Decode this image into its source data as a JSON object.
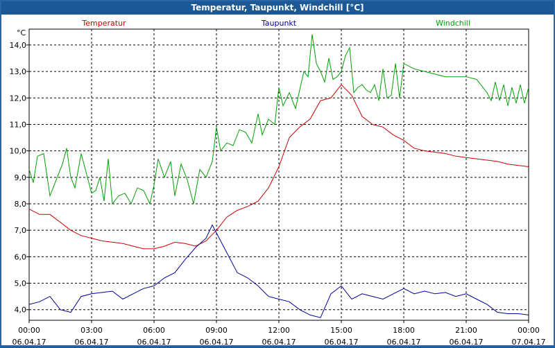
{
  "window": {
    "title": "Temperatur, Taupunkt, Windchill [°C]"
  },
  "colors": {
    "temperatur": "#cc0000",
    "taupunkt": "#000099",
    "windchill": "#00a000",
    "grid": "#000000",
    "background": "#ffffff"
  },
  "chart_data": {
    "type": "line",
    "title": "Temperatur, Taupunkt, Windchill [°C]",
    "ylabel": "°C",
    "ylim": [
      3.6,
      14.6
    ],
    "xlim": [
      0,
      24
    ],
    "grid": true,
    "legend_position": "top",
    "yticks": [
      {
        "value": 4.0,
        "label": "4,0"
      },
      {
        "value": 5.0,
        "label": "5,0"
      },
      {
        "value": 6.0,
        "label": "6,0"
      },
      {
        "value": 7.0,
        "label": "7,0"
      },
      {
        "value": 8.0,
        "label": "8,0"
      },
      {
        "value": 9.0,
        "label": "9,0"
      },
      {
        "value": 10.0,
        "label": "10,0"
      },
      {
        "value": 11.0,
        "label": "11,0"
      },
      {
        "value": 12.0,
        "label": "12,0"
      },
      {
        "value": 13.0,
        "label": "13,0"
      },
      {
        "value": 14.0,
        "label": "14,0"
      }
    ],
    "xticks": [
      {
        "value": 0,
        "time": "00:00",
        "date": "06.04.17"
      },
      {
        "value": 3,
        "time": "03:00",
        "date": "06.04.17"
      },
      {
        "value": 6,
        "time": "06:00",
        "date": "06.04.17"
      },
      {
        "value": 9,
        "time": "09:00",
        "date": "06.04.17"
      },
      {
        "value": 12,
        "time": "12:00",
        "date": "06.04.17"
      },
      {
        "value": 15,
        "time": "15:00",
        "date": "06.04.17"
      },
      {
        "value": 18,
        "time": "18:00",
        "date": "06.04.17"
      },
      {
        "value": 21,
        "time": "21:00",
        "date": "06.04.17"
      },
      {
        "value": 24,
        "time": "00:00",
        "date": "07.04.17"
      }
    ],
    "series": [
      {
        "name": "Temperatur",
        "color": "#cc0000",
        "x": [
          0,
          0.5,
          1,
          1.5,
          2,
          2.5,
          3,
          3.5,
          4,
          4.5,
          5,
          5.5,
          6,
          6.5,
          7,
          7.5,
          8,
          8.5,
          9,
          9.5,
          10,
          10.5,
          11,
          11.5,
          12,
          12.5,
          13,
          13.5,
          14,
          14.5,
          15,
          15.5,
          16,
          16.5,
          17,
          17.5,
          18,
          18.5,
          19,
          19.5,
          20,
          20.5,
          21,
          21.5,
          22,
          22.5,
          23,
          23.5,
          24
        ],
        "y": [
          7.8,
          7.6,
          7.6,
          7.3,
          7.0,
          6.8,
          6.7,
          6.6,
          6.55,
          6.5,
          6.4,
          6.3,
          6.3,
          6.4,
          6.55,
          6.5,
          6.4,
          6.6,
          7.0,
          7.5,
          7.75,
          7.9,
          8.1,
          8.6,
          9.4,
          10.5,
          10.9,
          11.2,
          11.9,
          12.0,
          12.5,
          12.1,
          11.3,
          11.0,
          10.9,
          10.6,
          10.4,
          10.1,
          10.0,
          9.95,
          9.9,
          9.8,
          9.75,
          9.7,
          9.65,
          9.6,
          9.5,
          9.45,
          9.4
        ]
      },
      {
        "name": "Taupunkt",
        "color": "#000099",
        "x": [
          0,
          0.5,
          1,
          1.5,
          2,
          2.5,
          3,
          3.5,
          4,
          4.5,
          5,
          5.5,
          6,
          6.5,
          7,
          7.5,
          8,
          8.5,
          8.8,
          9.2,
          9.6,
          10,
          10.5,
          11,
          11.5,
          12,
          12.5,
          13,
          13.5,
          14,
          14.5,
          15,
          15.5,
          16,
          16.5,
          17,
          17.5,
          18,
          18.5,
          19,
          19.5,
          20,
          20.5,
          21,
          21.5,
          22,
          22.5,
          23,
          23.5,
          24
        ],
        "y": [
          4.2,
          4.3,
          4.5,
          4.0,
          3.9,
          4.5,
          4.6,
          4.65,
          4.7,
          4.4,
          4.6,
          4.8,
          4.9,
          5.2,
          5.4,
          5.9,
          6.35,
          6.7,
          7.2,
          6.6,
          6.0,
          5.4,
          5.2,
          4.9,
          4.5,
          4.4,
          4.3,
          4.0,
          3.8,
          3.7,
          4.6,
          4.9,
          4.4,
          4.6,
          4.5,
          4.4,
          4.6,
          4.8,
          4.6,
          4.7,
          4.6,
          4.65,
          4.5,
          4.6,
          4.4,
          4.2,
          3.9,
          3.85,
          3.85,
          3.8
        ]
      },
      {
        "name": "Windchill",
        "color": "#00a000",
        "x": [
          0,
          0.2,
          0.4,
          0.7,
          1,
          1.3,
          1.6,
          1.8,
          2,
          2.2,
          2.5,
          2.8,
          3,
          3.2,
          3.4,
          3.6,
          3.8,
          4,
          4.3,
          4.6,
          4.9,
          5.2,
          5.5,
          5.8,
          6,
          6.2,
          6.5,
          6.8,
          7,
          7.3,
          7.6,
          7.9,
          8.2,
          8.5,
          8.8,
          9,
          9.2,
          9.5,
          9.8,
          10.1,
          10.4,
          10.7,
          11,
          11.2,
          11.5,
          11.8,
          12,
          12.2,
          12.5,
          12.8,
          13,
          13.2,
          13.4,
          13.6,
          13.8,
          14,
          14.2,
          14.4,
          14.6,
          14.8,
          15,
          15.2,
          15.4,
          15.6,
          15.8,
          16,
          16.2,
          16.4,
          16.6,
          16.8,
          17,
          17.2,
          17.4,
          17.6,
          17.8,
          18,
          18.5,
          19,
          19.5,
          20,
          20.5,
          21,
          21.5,
          22,
          22.2,
          22.4,
          22.6,
          22.8,
          23,
          23.2,
          23.4,
          23.6,
          23.8,
          24
        ],
        "y": [
          9.3,
          8.8,
          9.8,
          9.9,
          8.3,
          8.9,
          9.5,
          10.1,
          9.0,
          8.6,
          9.9,
          9.0,
          8.4,
          8.5,
          9.0,
          8.1,
          9.7,
          8.0,
          8.3,
          8.4,
          8.0,
          8.6,
          8.5,
          8.0,
          8.7,
          9.7,
          9.0,
          9.6,
          8.3,
          9.5,
          8.9,
          8.0,
          9.3,
          9.0,
          9.6,
          10.9,
          10.0,
          10.3,
          10.2,
          10.8,
          10.7,
          10.3,
          11.4,
          10.6,
          11.2,
          11.0,
          12.4,
          11.7,
          12.2,
          11.6,
          12.3,
          13.0,
          12.8,
          14.4,
          13.3,
          13.0,
          12.6,
          13.5,
          12.7,
          12.8,
          13.0,
          13.6,
          13.9,
          12.2,
          12.4,
          12.5,
          12.3,
          12.2,
          12.5,
          11.9,
          13.1,
          12.0,
          12.1,
          13.3,
          12.0,
          13.3,
          13.1,
          13.0,
          12.9,
          12.8,
          12.8,
          12.8,
          12.7,
          12.2,
          11.9,
          12.6,
          11.9,
          12.5,
          11.7,
          12.4,
          11.8,
          12.5,
          11.8,
          12.4
        ]
      }
    ]
  }
}
